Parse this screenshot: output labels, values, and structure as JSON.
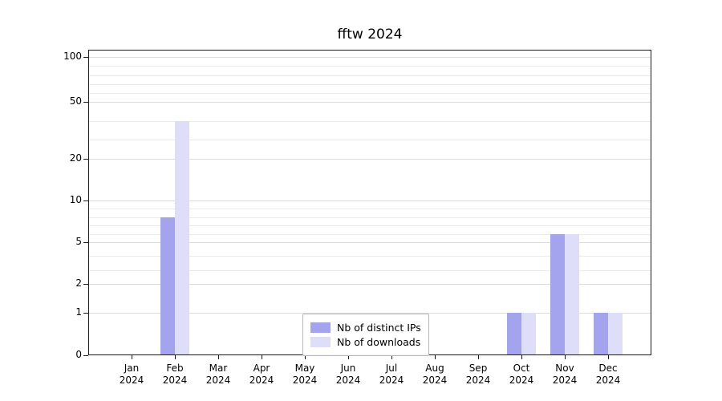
{
  "chart_data": {
    "type": "bar",
    "title": "fftw 2024",
    "categories": [
      "Jan",
      "Feb",
      "Mar",
      "Apr",
      "May",
      "Jun",
      "Jul",
      "Aug",
      "Sep",
      "Oct",
      "Nov",
      "Dec"
    ],
    "year": "2024",
    "series": [
      {
        "name": "Nb of distinct IPs",
        "color": "#a3a3ee",
        "values": [
          0,
          8,
          0,
          0,
          0,
          0,
          0,
          0,
          0,
          1,
          6,
          1
        ]
      },
      {
        "name": "Nb of downloads",
        "color": "#dedef8",
        "values": [
          0,
          40,
          0,
          0,
          0,
          0,
          0,
          0,
          0,
          1,
          6,
          1
        ]
      }
    ],
    "yticks": [
      0,
      1,
      2,
      5,
      10,
      20,
      50,
      100
    ],
    "minor_gridlines": [
      3,
      4,
      6,
      7,
      8,
      9,
      30,
      40,
      60,
      70,
      80,
      90
    ],
    "scale": "log-like (0,1,2,5,10,20,50,100)",
    "ylim": [
      0,
      100
    ],
    "grid": true,
    "legend_position": "lower center"
  }
}
